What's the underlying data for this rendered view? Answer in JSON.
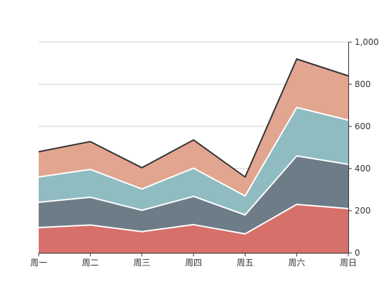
{
  "chart_data": {
    "type": "area",
    "stacked": true,
    "title": "",
    "xlabel": "",
    "ylabel": "",
    "categories": [
      "周一",
      "周二",
      "周三",
      "周四",
      "周五",
      "周六",
      "周日"
    ],
    "series": [
      {
        "values": [
          120,
          132,
          101,
          134,
          90,
          230,
          210
        ],
        "color": "#d6706b"
      },
      {
        "values": [
          120,
          132,
          101,
          134,
          90,
          230,
          210
        ],
        "color": "#6e7c88"
      },
      {
        "values": [
          120,
          132,
          101,
          134,
          90,
          230,
          210
        ],
        "color": "#8fbcc0"
      },
      {
        "values": [
          120,
          132,
          101,
          134,
          90,
          230,
          210
        ],
        "color": "#e1a590"
      }
    ],
    "y_ticks": [
      "0",
      "200",
      "400",
      "600",
      "800",
      "1,000"
    ],
    "y_tick_values": [
      0,
      200,
      400,
      600,
      800,
      1000
    ],
    "ylim": [
      0,
      1000
    ],
    "y_axis_side": "right",
    "grid": true,
    "legend": "none",
    "colors": {
      "grid": "#cccccc",
      "axis": "#333333",
      "separator": "#ffffff",
      "total_line": "#333333"
    }
  }
}
